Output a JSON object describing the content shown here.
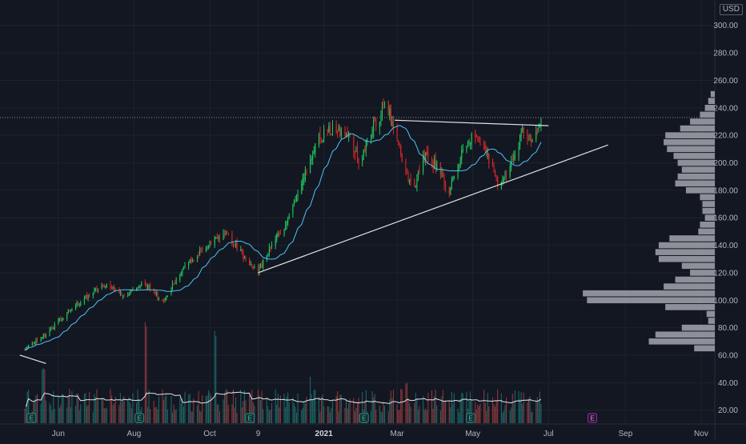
{
  "chart_data": {
    "type": "candlestick",
    "currency": "USD",
    "price_axis": {
      "ticks": [
        300,
        280,
        260,
        240,
        220,
        200,
        180,
        160,
        140,
        120,
        100,
        80,
        60,
        40,
        20
      ],
      "label_format": "0.00",
      "ylim": [
        14,
        308
      ]
    },
    "time_axis": {
      "labels": [
        {
          "text": "Jun",
          "x": "2020-06-01",
          "bold": false
        },
        {
          "text": "Aug",
          "x": "2020-08-01",
          "bold": false
        },
        {
          "text": "Oct",
          "x": "2020-10-01",
          "bold": false
        },
        {
          "text": "9",
          "x": "2020-11-09",
          "bold": false
        },
        {
          "text": "2021",
          "x": "2021-01-01",
          "bold": true
        },
        {
          "text": "Mar",
          "x": "2021-03-01",
          "bold": false
        },
        {
          "text": "May",
          "x": "2021-05-01",
          "bold": false
        },
        {
          "text": "Jul",
          "x": "2021-07-01",
          "bold": false
        },
        {
          "text": "Sep",
          "x": "2021-09-01",
          "bold": false
        },
        {
          "text": "Nov",
          "x": "2021-11-01",
          "bold": false
        }
      ]
    },
    "price_path": [
      [
        "2020-05-05",
        65
      ],
      [
        "2020-05-20",
        74
      ],
      [
        "2020-06-05",
        88
      ],
      [
        "2020-06-25",
        104
      ],
      [
        "2020-07-10",
        112
      ],
      [
        "2020-07-25",
        104
      ],
      [
        "2020-08-10",
        112
      ],
      [
        "2020-08-25",
        98
      ],
      [
        "2020-09-05",
        118
      ],
      [
        "2020-09-20",
        132
      ],
      [
        "2020-10-05",
        144
      ],
      [
        "2020-10-15",
        147
      ],
      [
        "2020-10-28",
        132
      ],
      [
        "2020-11-09",
        120
      ],
      [
        "2020-11-20",
        140
      ],
      [
        "2020-12-05",
        162
      ],
      [
        "2020-12-15",
        190
      ],
      [
        "2020-12-28",
        218
      ],
      [
        "2021-01-08",
        225
      ],
      [
        "2021-01-20",
        222
      ],
      [
        "2021-01-30",
        200
      ],
      [
        "2021-02-10",
        228
      ],
      [
        "2021-02-20",
        240
      ],
      [
        "2021-02-27",
        228
      ],
      [
        "2021-03-08",
        190
      ],
      [
        "2021-03-15",
        182
      ],
      [
        "2021-03-22",
        205
      ],
      [
        "2021-04-02",
        198
      ],
      [
        "2021-04-12",
        178
      ],
      [
        "2021-04-25",
        215
      ],
      [
        "2021-05-05",
        221
      ],
      [
        "2021-05-15",
        200
      ],
      [
        "2021-05-22",
        182
      ],
      [
        "2021-06-01",
        200
      ],
      [
        "2021-06-10",
        222
      ],
      [
        "2021-06-17",
        215
      ],
      [
        "2021-06-22",
        222
      ],
      [
        "2021-06-27",
        235
      ]
    ],
    "volume_scale_max": 60,
    "volume_spikes": [
      {
        "x": "2020-05-20",
        "value": 30
      },
      {
        "x": "2020-08-10",
        "value": 55
      },
      {
        "x": "2020-10-05",
        "value": 50
      },
      {
        "x": "2020-12-20",
        "value": 25
      },
      {
        "x": "2021-03-08",
        "value": 22
      },
      {
        "x": "2021-04-25",
        "value": 17
      },
      {
        "x": "2021-06-22",
        "value": 12
      }
    ],
    "earnings_markers": [
      {
        "x": "2020-05-10",
        "label": "E",
        "future": false
      },
      {
        "x": "2020-08-05",
        "label": "E",
        "future": false
      },
      {
        "x": "2020-11-02",
        "label": "E",
        "future": false
      },
      {
        "x": "2021-02-02",
        "label": "E",
        "future": false
      },
      {
        "x": "2021-04-29",
        "label": "E",
        "future": false
      },
      {
        "x": "2021-08-05",
        "label": "E",
        "future": true
      }
    ],
    "volume_profile": [
      {
        "price": 250,
        "volume": 5
      },
      {
        "price": 245,
        "volume": 8
      },
      {
        "price": 240,
        "volume": 12
      },
      {
        "price": 235,
        "volume": 18
      },
      {
        "price": 230,
        "volume": 30
      },
      {
        "price": 225,
        "volume": 42
      },
      {
        "price": 220,
        "volume": 60
      },
      {
        "price": 215,
        "volume": 62
      },
      {
        "price": 210,
        "volume": 58
      },
      {
        "price": 205,
        "volume": 50
      },
      {
        "price": 200,
        "volume": 45
      },
      {
        "price": 195,
        "volume": 40
      },
      {
        "price": 190,
        "volume": 45
      },
      {
        "price": 185,
        "volume": 48
      },
      {
        "price": 180,
        "volume": 35
      },
      {
        "price": 175,
        "volume": 18
      },
      {
        "price": 170,
        "volume": 15
      },
      {
        "price": 165,
        "volume": 15
      },
      {
        "price": 160,
        "volume": 12
      },
      {
        "price": 155,
        "volume": 18
      },
      {
        "price": 150,
        "volume": 20
      },
      {
        "price": 145,
        "volume": 55
      },
      {
        "price": 140,
        "volume": 68
      },
      {
        "price": 135,
        "volume": 72
      },
      {
        "price": 130,
        "volume": 68
      },
      {
        "price": 125,
        "volume": 40
      },
      {
        "price": 120,
        "volume": 30
      },
      {
        "price": 115,
        "volume": 48
      },
      {
        "price": 110,
        "volume": 62
      },
      {
        "price": 105,
        "volume": 160
      },
      {
        "price": 100,
        "volume": 155
      },
      {
        "price": 95,
        "volume": 60
      },
      {
        "price": 90,
        "volume": 10
      },
      {
        "price": 85,
        "volume": 8
      },
      {
        "price": 80,
        "volume": 40
      },
      {
        "price": 75,
        "volume": 72
      },
      {
        "price": 70,
        "volume": 80
      },
      {
        "price": 65,
        "volume": 25
      }
    ],
    "trendlines": [
      {
        "name": "resistance",
        "from": [
          "2021-02-27",
          231
        ],
        "to": [
          "2021-07-01",
          227
        ]
      },
      {
        "name": "support",
        "from": [
          "2020-11-09",
          120
        ],
        "to": [
          "2021-08-18",
          213
        ]
      },
      {
        "name": "old-line",
        "from": [
          "2020-05-01",
          60
        ],
        "to": [
          "2020-05-22",
          54
        ]
      }
    ],
    "last_price_line": 233,
    "colors": {
      "background": "#131722",
      "grid": "#1e222d",
      "up": "#26a69a",
      "down": "#ef5350",
      "up_candle": "#22c55e",
      "down_candle": "#dc2626",
      "ma": "#4fc3f7",
      "profile": "#a3a6ad",
      "trendline": "#e0e3eb",
      "vol_ma": "#e0e3eb",
      "earnings": "#2b8c88",
      "earnings_future": "#9c27b0"
    }
  }
}
